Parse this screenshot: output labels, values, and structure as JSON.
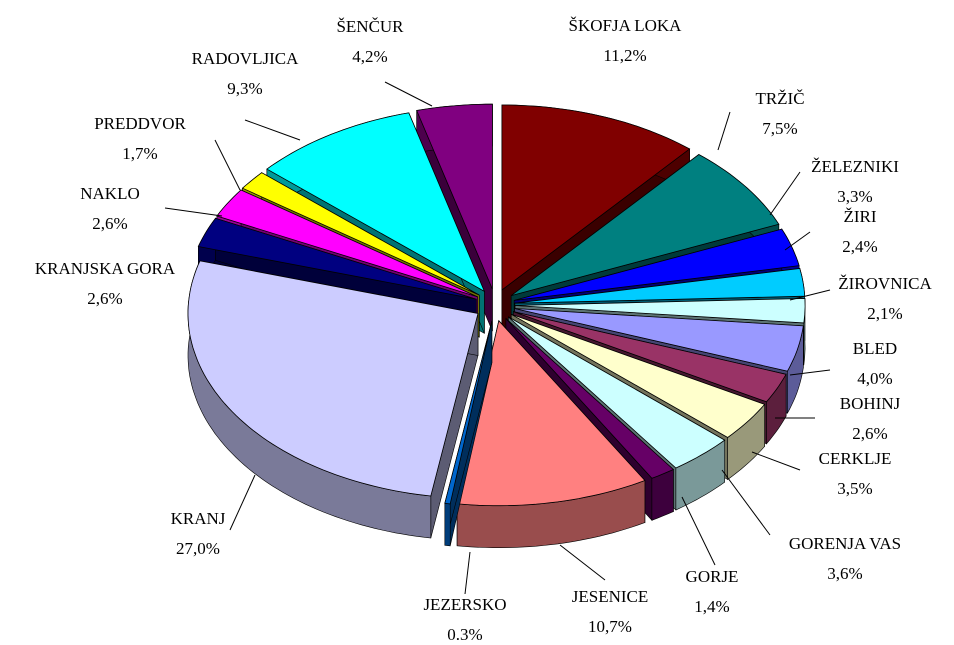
{
  "chart_data": {
    "type": "pie3d",
    "categories": [
      "ŠKOFJA LOKA",
      "TRŽIČ",
      "ŽELEZNIKI",
      "ŽIRI",
      "ŽIROVNICA",
      "BLED",
      "BOHINJ",
      "CERKLJE",
      "GORENJA VAS",
      "GORJE",
      "JESENICE",
      "JEZERSKO",
      "KRANJ",
      "KRANJSKA GORA",
      "NAKLO",
      "PREDDVOR",
      "RADOVLJICA",
      "ŠENČUR"
    ],
    "values": [
      11.2,
      7.5,
      3.3,
      2.4,
      2.1,
      4.0,
      2.6,
      3.5,
      3.6,
      1.4,
      10.7,
      0.3,
      27.0,
      2.6,
      2.6,
      1.7,
      9.3,
      4.2
    ],
    "value_labels": [
      "11,2%",
      "7,5%",
      "3,3%",
      "2,4%",
      "2,1%",
      "4,0%",
      "2,6%",
      "3,5%",
      "3,6%",
      "1,4%",
      "10,7%",
      "0.3%",
      "27,0%",
      "2,6%",
      "2,6%",
      "1,7%",
      "9,3%",
      "4,2%"
    ],
    "colors": [
      "#800000",
      "#008080",
      "#0000ff",
      "#00ccff",
      "#ccffff",
      "#9999ff",
      "#993366",
      "#ffffcc",
      "#ccffff",
      "#660066",
      "#ff8080",
      "#0066cc",
      "#ccccff",
      "#000080",
      "#ff00ff",
      "#ffff00",
      "#00ffff",
      "#800080"
    ]
  }
}
